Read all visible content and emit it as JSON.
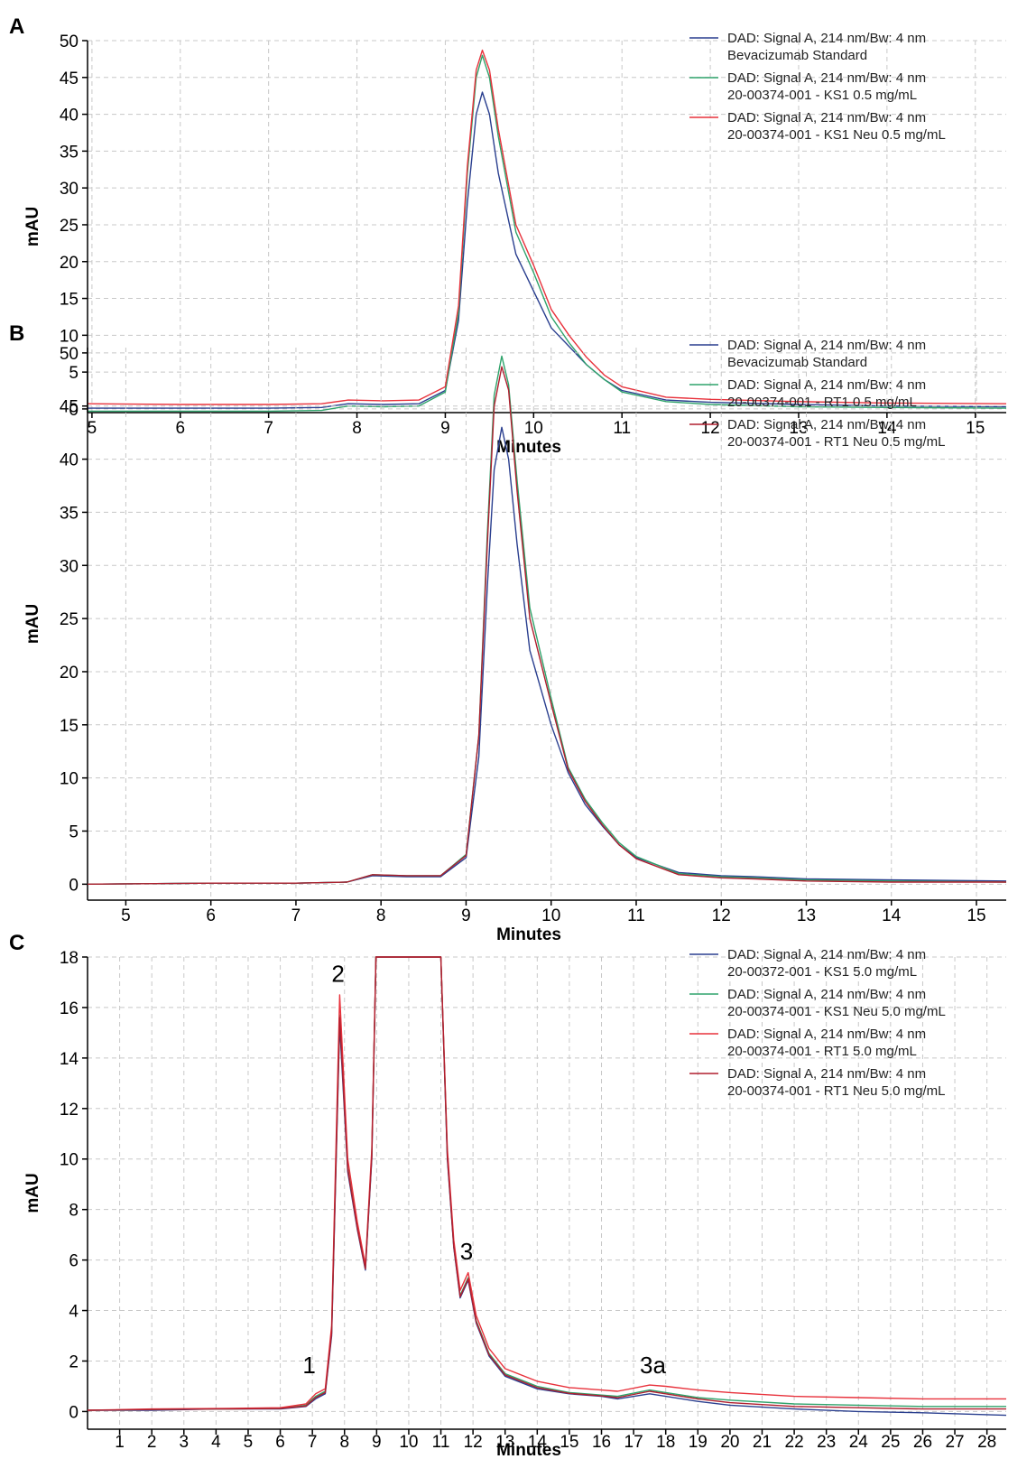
{
  "colors": {
    "blue": "#2a3f8f",
    "green": "#2fa36b",
    "red": "#e8323c",
    "darkred": "#b01e2e"
  },
  "chart_data": [
    {
      "panel": "A",
      "type": "line",
      "xlabel": "Minutes",
      "ylabel": "mAU",
      "xlim": [
        4.95,
        15.35
      ],
      "ylim": [
        -0.5,
        50
      ],
      "xticks": [
        5,
        6,
        7,
        8,
        9,
        10,
        11,
        12,
        13,
        14,
        15
      ],
      "yticks": [
        0,
        5,
        10,
        15,
        20,
        25,
        30,
        35,
        40,
        45,
        50
      ],
      "grid": true,
      "legend_position": "top-right",
      "series": [
        {
          "name": "DAD: Signal A, 214 nm/Bw: 4 nm",
          "name2": "Bevacizumab Standard",
          "color": "#2a3f8f",
          "x": [
            4.95,
            6,
            7,
            7.6,
            7.9,
            8.3,
            8.7,
            9.0,
            9.15,
            9.25,
            9.35,
            9.42,
            9.5,
            9.6,
            9.8,
            10.0,
            10.2,
            10.4,
            10.6,
            10.8,
            11.0,
            11.5,
            12.0,
            13.0,
            14.0,
            15.35
          ],
          "y": [
            0.1,
            0.1,
            0.1,
            0.2,
            0.7,
            0.6,
            0.7,
            2.5,
            12,
            28,
            40,
            43,
            40,
            32,
            21,
            16,
            11,
            8.5,
            6,
            4,
            2.5,
            1.2,
            0.9,
            0.6,
            0.4,
            0.3
          ]
        },
        {
          "name": "DAD: Signal A, 214 nm/Bw: 4 nm",
          "name2": "20-00374-001 - KS1 0.5 mg/mL",
          "color": "#2fa36b",
          "x": [
            4.95,
            6,
            7,
            7.6,
            7.9,
            8.3,
            8.7,
            9.0,
            9.15,
            9.25,
            9.35,
            9.42,
            9.5,
            9.6,
            9.8,
            10.0,
            10.2,
            10.4,
            10.6,
            10.8,
            11.0,
            11.5,
            12.0,
            13.0,
            14.0,
            15.35
          ],
          "y": [
            -0.3,
            -0.3,
            -0.3,
            -0.2,
            0.4,
            0.3,
            0.4,
            2.3,
            13,
            32,
            45,
            48,
            45,
            37,
            24,
            18.5,
            12.5,
            9,
            6,
            4,
            2.3,
            1.0,
            0.6,
            0.3,
            0.2,
            0.1
          ]
        },
        {
          "name": "DAD: Signal A, 214 nm/Bw: 4 nm",
          "name2": "20-00374-001 - KS1 Neu 0.5 mg/mL",
          "color": "#e8323c",
          "x": [
            4.95,
            6,
            7,
            7.6,
            7.9,
            8.3,
            8.7,
            9.0,
            9.15,
            9.25,
            9.35,
            9.42,
            9.5,
            9.6,
            9.8,
            10.0,
            10.2,
            10.4,
            10.6,
            10.8,
            11.0,
            11.5,
            12.0,
            13.0,
            14.0,
            15.35
          ],
          "y": [
            0.7,
            0.6,
            0.6,
            0.7,
            1.2,
            1.1,
            1.2,
            3,
            14,
            33,
            46,
            48.7,
            46,
            38,
            25,
            19.5,
            13.5,
            10,
            7,
            4.6,
            3,
            1.6,
            1.3,
            1.0,
            0.8,
            0.7
          ]
        }
      ]
    },
    {
      "panel": "B",
      "type": "line",
      "xlabel": "Minutes",
      "ylabel": "mAU",
      "xlim": [
        4.55,
        15.35
      ],
      "ylim": [
        -1.5,
        50.5
      ],
      "xticks": [
        5,
        6,
        7,
        8,
        9,
        10,
        11,
        12,
        13,
        14,
        15
      ],
      "yticks": [
        0,
        5,
        10,
        15,
        20,
        25,
        30,
        35,
        40,
        45,
        50
      ],
      "grid": true,
      "legend_position": "top-right",
      "series": [
        {
          "name": "DAD: Signal A, 214 nm/Bw: 4 nm",
          "name2": "Bevacizumab Standard",
          "color": "#2a3f8f",
          "x": [
            4.55,
            6,
            7,
            7.6,
            7.9,
            8.3,
            8.7,
            9.0,
            9.15,
            9.25,
            9.33,
            9.42,
            9.5,
            9.6,
            9.75,
            10.0,
            10.2,
            10.4,
            10.6,
            10.8,
            11.0,
            11.5,
            12.0,
            12.4,
            13.0,
            14.0,
            15.35
          ],
          "y": [
            0.0,
            0.1,
            0.1,
            0.2,
            0.8,
            0.7,
            0.7,
            2.5,
            12,
            28,
            39,
            43,
            40,
            32,
            22,
            15,
            10.5,
            7.5,
            5.5,
            3.7,
            2.5,
            1.1,
            0.8,
            0.7,
            0.5,
            0.4,
            0.3
          ]
        },
        {
          "name": "DAD: Signal A, 214 nm/Bw: 4 nm",
          "name2": "20-00374-001 - RT1 0.5 mg/mL",
          "color": "#2fa36b",
          "x": [
            4.55,
            6,
            7,
            7.6,
            7.9,
            8.3,
            8.7,
            9.0,
            9.15,
            9.25,
            9.33,
            9.42,
            9.5,
            9.6,
            9.75,
            10.0,
            10.2,
            10.4,
            10.6,
            10.8,
            11.0,
            11.5,
            12.0,
            12.4,
            13.0,
            14.0,
            15.35
          ],
          "y": [
            0.0,
            0.1,
            0.1,
            0.2,
            0.9,
            0.8,
            0.8,
            2.8,
            14,
            33,
            46,
            49.7,
            47,
            38,
            26,
            17.5,
            11,
            8,
            5.8,
            3.9,
            2.6,
            1.0,
            0.7,
            0.6,
            0.4,
            0.3,
            0.2
          ]
        },
        {
          "name": "DAD: Signal A, 214 nm/Bw: 4 nm",
          "name2": "20-00374-001 - RT1 Neu 0.5 mg/mL",
          "color": "#b01e2e",
          "x": [
            4.55,
            6,
            7,
            7.6,
            7.9,
            8.3,
            8.7,
            9.0,
            9.15,
            9.25,
            9.33,
            9.42,
            9.5,
            9.6,
            9.75,
            10.0,
            10.2,
            10.4,
            10.6,
            10.8,
            11.0,
            11.5,
            12.0,
            12.4,
            13.0,
            14.0,
            15.35
          ],
          "y": [
            0.0,
            0.1,
            0.1,
            0.2,
            0.9,
            0.8,
            0.8,
            2.7,
            14,
            32,
            45,
            48.7,
            46.5,
            37,
            25,
            17,
            10.8,
            7.8,
            5.6,
            3.7,
            2.4,
            0.9,
            0.6,
            0.5,
            0.3,
            0.2,
            0.2
          ]
        }
      ]
    },
    {
      "panel": "C",
      "type": "line",
      "xlabel": "Minutes",
      "ylabel": "mAU",
      "xlim": [
        0,
        28.6
      ],
      "ylim": [
        -0.7,
        18
      ],
      "xticks": [
        1,
        2,
        3,
        4,
        5,
        6,
        7,
        8,
        9,
        10,
        11,
        12,
        13,
        14,
        15,
        16,
        17,
        18,
        19,
        20,
        21,
        22,
        23,
        24,
        25,
        26,
        27,
        28
      ],
      "yticks": [
        0,
        2,
        4,
        6,
        8,
        10,
        12,
        14,
        16,
        18
      ],
      "grid": true,
      "legend_position": "top-right",
      "annotations": [
        {
          "text": "1",
          "x": 6.9,
          "y": 1.3
        },
        {
          "text": "2",
          "x": 7.8,
          "y": 16.8
        },
        {
          "text": "3",
          "x": 11.8,
          "y": 5.8
        },
        {
          "text": "3a",
          "x": 17.6,
          "y": 1.3
        }
      ],
      "series": [
        {
          "name": "DAD: Signal A, 214 nm/Bw: 4 nm",
          "name2": "20-00372-001 - KS1 5.0 mg/mL",
          "color": "#2a3f8f",
          "x": [
            0,
            2,
            4,
            6,
            6.8,
            7.1,
            7.4,
            7.6,
            7.85,
            8.1,
            8.4,
            8.65,
            8.85,
            8.98,
            11.0,
            11.2,
            11.4,
            11.6,
            11.85,
            12.1,
            12.5,
            13,
            14,
            15,
            16,
            16.5,
            17.5,
            18,
            19,
            20,
            22,
            24,
            26,
            28.6
          ],
          "y": [
            0.05,
            0.05,
            0.1,
            0.1,
            0.2,
            0.5,
            0.7,
            3,
            15.3,
            9.5,
            7.2,
            5.6,
            10,
            18,
            18,
            10,
            6.5,
            4.5,
            5.2,
            3.5,
            2.2,
            1.4,
            0.9,
            0.7,
            0.6,
            0.5,
            0.7,
            0.6,
            0.4,
            0.25,
            0.1,
            0,
            -0.05,
            -0.15
          ]
        },
        {
          "name": "DAD: Signal A, 214 nm/Bw: 4 nm",
          "name2": "20-00374-001 - KS1 Neu 5.0 mg/mL",
          "color": "#2fa36b",
          "x": [
            0,
            2,
            4,
            6,
            6.8,
            7.1,
            7.4,
            7.6,
            7.85,
            8.1,
            8.4,
            8.65,
            8.85,
            8.98,
            11.0,
            11.2,
            11.4,
            11.6,
            11.85,
            12.1,
            12.5,
            13,
            14,
            15,
            16,
            16.5,
            17.5,
            18,
            19,
            20,
            22,
            24,
            26,
            28.6
          ],
          "y": [
            0.05,
            0.08,
            0.1,
            0.12,
            0.25,
            0.6,
            0.8,
            3.2,
            15.7,
            9.7,
            7.3,
            5.7,
            10.2,
            18,
            18,
            10.2,
            6.6,
            4.6,
            5.3,
            3.6,
            2.3,
            1.5,
            1.0,
            0.75,
            0.65,
            0.6,
            0.85,
            0.75,
            0.55,
            0.45,
            0.3,
            0.25,
            0.2,
            0.2
          ]
        },
        {
          "name": "DAD: Signal A, 214 nm/Bw: 4 nm",
          "name2": "20-00374-001 - RT1 5.0 mg/mL",
          "color": "#e8323c",
          "x": [
            0,
            2,
            4,
            6,
            6.8,
            7.1,
            7.4,
            7.6,
            7.85,
            8.1,
            8.4,
            8.65,
            8.85,
            8.98,
            11.0,
            11.2,
            11.4,
            11.6,
            11.85,
            12.1,
            12.5,
            13,
            14,
            15,
            16,
            16.5,
            17.5,
            18,
            19,
            20,
            22,
            24,
            26,
            28.6
          ],
          "y": [
            0.05,
            0.1,
            0.12,
            0.15,
            0.3,
            0.7,
            0.9,
            3.4,
            16.5,
            10,
            7.5,
            5.8,
            10.4,
            18,
            18,
            10.4,
            6.8,
            4.8,
            5.5,
            3.8,
            2.5,
            1.7,
            1.2,
            0.95,
            0.85,
            0.8,
            1.05,
            1.0,
            0.85,
            0.75,
            0.6,
            0.55,
            0.5,
            0.5
          ]
        },
        {
          "name": "DAD: Signal A, 214 nm/Bw: 4 nm",
          "name2": "20-00374-001 - RT1 Neu 5.0 mg/mL",
          "color": "#b01e2e",
          "x": [
            0,
            2,
            4,
            6,
            6.8,
            7.1,
            7.4,
            7.6,
            7.85,
            8.1,
            8.4,
            8.65,
            8.85,
            8.98,
            11.0,
            11.2,
            11.4,
            11.6,
            11.85,
            12.1,
            12.5,
            13,
            14,
            15,
            16,
            16.5,
            17.5,
            18,
            19,
            20,
            22,
            24,
            26,
            28.6
          ],
          "y": [
            0.05,
            0.08,
            0.1,
            0.12,
            0.22,
            0.55,
            0.75,
            3.1,
            15.6,
            9.6,
            7.25,
            5.65,
            10.1,
            18,
            18,
            10.1,
            6.55,
            4.55,
            5.25,
            3.55,
            2.25,
            1.45,
            0.95,
            0.72,
            0.62,
            0.55,
            0.8,
            0.7,
            0.5,
            0.35,
            0.2,
            0.15,
            0.1,
            0.1
          ]
        }
      ]
    }
  ]
}
